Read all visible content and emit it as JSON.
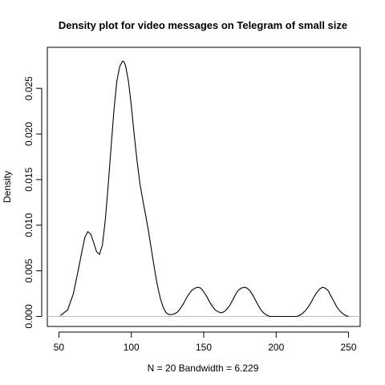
{
  "chart_data": {
    "type": "line",
    "title": "Density plot for video messages on Telegram of small size",
    "xlabel": "N = 20   Bandwidth = 6.229",
    "ylabel": "Density",
    "xlim": [
      42,
      258
    ],
    "ylim": [
      -0.0011,
      0.0295
    ],
    "x_ticks": [
      50,
      100,
      150,
      200,
      250
    ],
    "x_tick_labels": [
      "50",
      "100",
      "150",
      "200",
      "250"
    ],
    "y_ticks": [
      0.0,
      0.005,
      0.01,
      0.015,
      0.02,
      0.025
    ],
    "y_tick_labels": [
      "0.000",
      "0.005",
      "0.010",
      "0.015",
      "0.020",
      "0.025"
    ],
    "baseline": 0,
    "baseline_color": "#bebebe",
    "line_color": "#000000",
    "series": [
      {
        "x": [
          51,
          56,
          60,
          63,
          66,
          68,
          70,
          72,
          74,
          76,
          78,
          80,
          82,
          84,
          86,
          88,
          90,
          92,
          94,
          95,
          96,
          98,
          100,
          102,
          104,
          106,
          108,
          110,
          112,
          114,
          116,
          118,
          120,
          122,
          124,
          126,
          128,
          130,
          132,
          134,
          136,
          138,
          140,
          142,
          144,
          146,
          148,
          150,
          152,
          154,
          156,
          158,
          160,
          162,
          164,
          166,
          168,
          170,
          172,
          174,
          176,
          178,
          180,
          182,
          184,
          186,
          188,
          190,
          192,
          194,
          196,
          198,
          200,
          202,
          204,
          206,
          208,
          210,
          212,
          214,
          216,
          218,
          220,
          222,
          224,
          226,
          228,
          230,
          232,
          234,
          236,
          238,
          240,
          242,
          244,
          246,
          248,
          250
        ],
        "y": [
          0.0001,
          0.0007,
          0.0025,
          0.0048,
          0.0072,
          0.0087,
          0.0093,
          0.009,
          0.0081,
          0.0071,
          0.0068,
          0.0078,
          0.0105,
          0.0143,
          0.0185,
          0.0226,
          0.0258,
          0.0274,
          0.028,
          0.0279,
          0.0275,
          0.0258,
          0.0231,
          0.0199,
          0.017,
          0.0145,
          0.0127,
          0.011,
          0.0092,
          0.0072,
          0.0052,
          0.0034,
          0.002,
          0.001,
          0.0004,
          0.0002,
          0.0002,
          0.0003,
          0.0005,
          0.0009,
          0.0014,
          0.002,
          0.0025,
          0.0029,
          0.0031,
          0.0032,
          0.0031,
          0.0027,
          0.0022,
          0.0016,
          0.0011,
          0.0007,
          0.0005,
          0.0004,
          0.0005,
          0.0008,
          0.0012,
          0.0018,
          0.0024,
          0.0029,
          0.0031,
          0.0032,
          0.0031,
          0.0028,
          0.0023,
          0.0017,
          0.0011,
          0.0006,
          0.0003,
          0.0001,
          0.0,
          0.0,
          0.0,
          0.0,
          0.0,
          0.0,
          0.0,
          0.0,
          0.0,
          0.0,
          0.0001,
          0.0003,
          0.0006,
          0.001,
          0.0015,
          0.0021,
          0.0026,
          0.003,
          0.0032,
          0.0031,
          0.0028,
          0.0022,
          0.0016,
          0.001,
          0.0006,
          0.0003,
          0.0001,
          0.0
        ]
      }
    ]
  }
}
